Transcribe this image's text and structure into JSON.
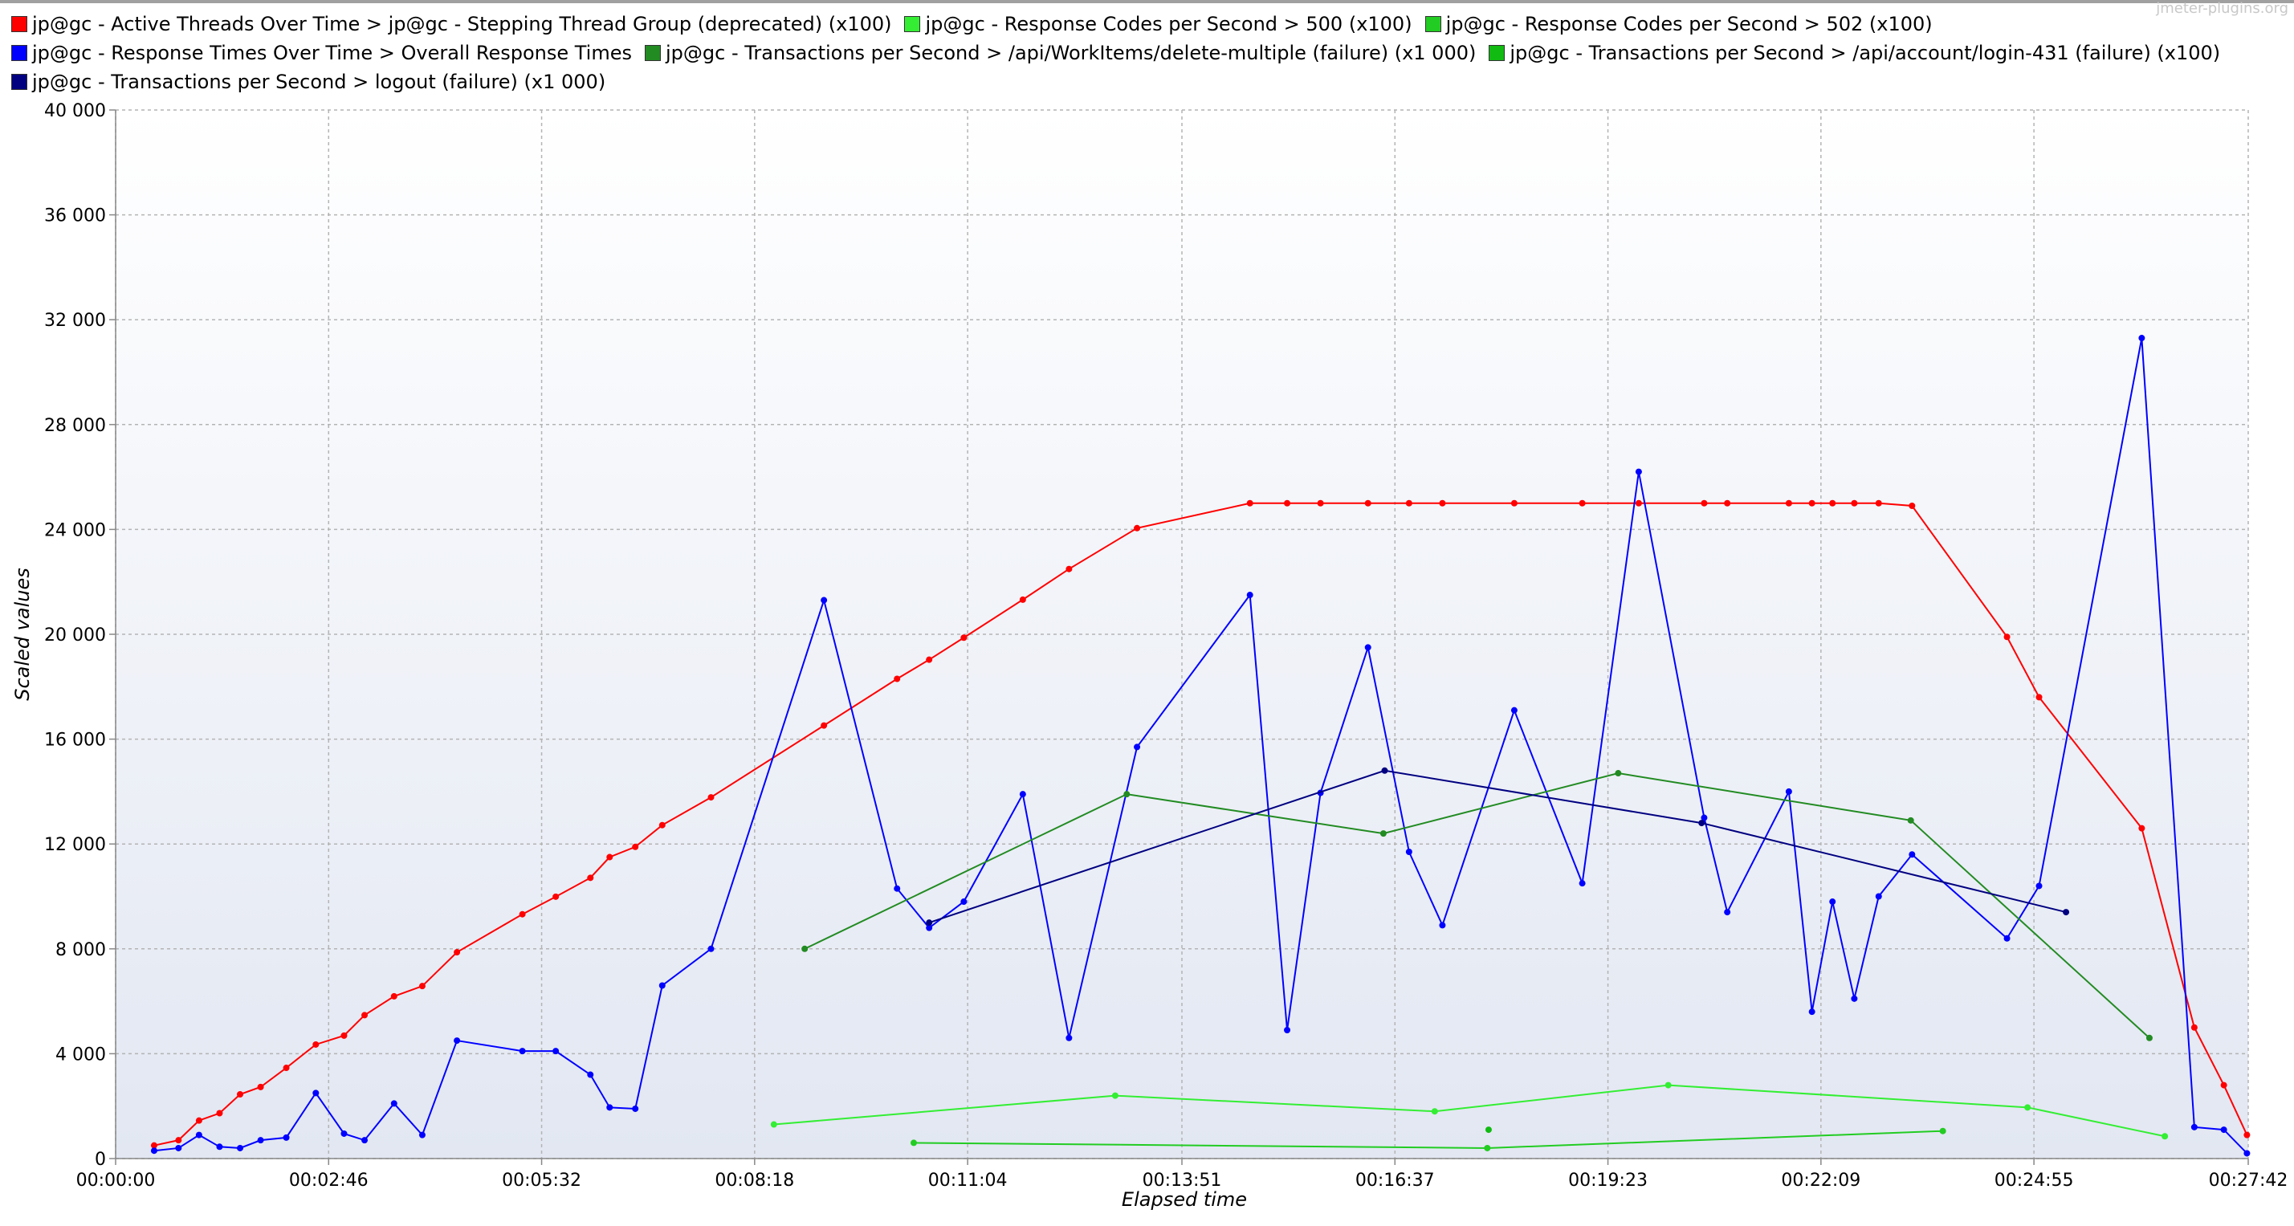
{
  "chart_data": {
    "type": "line",
    "watermark": "jmeter-plugins.org",
    "x_label": "Elapsed time",
    "y_label": "Scaled values",
    "xlim": [
      0,
      1662
    ],
    "xticks": [
      {
        "value": 0,
        "label": "00:00:00"
      },
      {
        "value": 166,
        "label": "00:02:46"
      },
      {
        "value": 332,
        "label": "00:05:32"
      },
      {
        "value": 498,
        "label": "00:08:18"
      },
      {
        "value": 664,
        "label": "00:11:04"
      },
      {
        "value": 831,
        "label": "00:13:51"
      },
      {
        "value": 997,
        "label": "00:16:37"
      },
      {
        "value": 1163,
        "label": "00:19:23"
      },
      {
        "value": 1329,
        "label": "00:22:09"
      },
      {
        "value": 1495,
        "label": "00:24:55"
      },
      {
        "value": 1662,
        "label": "00:27:42"
      }
    ],
    "ylim": [
      0,
      40000
    ],
    "yticks": [
      0,
      {
        "value": 4000,
        "label": "4 000"
      },
      {
        "value": 8000,
        "label": "8 000"
      },
      {
        "value": 12000,
        "label": "12 000"
      },
      {
        "value": 16000,
        "label": "16 000"
      },
      {
        "value": 20000,
        "label": "20 000"
      },
      {
        "value": 24000,
        "label": "24 000"
      },
      {
        "value": 28000,
        "label": "28 000"
      },
      {
        "value": 32000,
        "label": "32 000"
      },
      {
        "value": 36000,
        "label": "36 000"
      },
      {
        "value": 40000,
        "label": "40 000"
      }
    ],
    "grid": true,
    "series": [
      {
        "name": "jp@gc - Active Threads Over Time > jp@gc - Stepping Thread Group (deprecated) (x100)",
        "color": "#ff0000",
        "x": [
          30,
          49,
          65,
          81,
          97,
          113,
          133,
          156,
          178,
          194,
          217,
          239,
          266,
          317,
          343,
          370,
          385,
          405,
          426,
          464,
          552,
          609,
          634,
          661,
          707,
          743,
          796,
          884,
          913,
          939,
          976,
          1008,
          1034,
          1090,
          1143,
          1187,
          1238,
          1256,
          1304,
          1322,
          1338,
          1355,
          1374,
          1400,
          1474,
          1499,
          1579,
          1620,
          1643,
          1661
        ],
        "values": [
          500,
          700,
          1450,
          1730,
          2450,
          2730,
          3460,
          4350,
          4690,
          5470,
          6190,
          6580,
          7870,
          9320,
          9990,
          10710,
          11500,
          11890,
          12720,
          13780,
          16520,
          18300,
          19030,
          19870,
          21320,
          22490,
          24050,
          25000,
          25000,
          25000,
          25000,
          25000,
          25000,
          25000,
          25000,
          25000,
          25000,
          25000,
          25000,
          25000,
          25000,
          25000,
          25000,
          24900,
          19900,
          17600,
          12600,
          5000,
          2800,
          900
        ]
      },
      {
        "name": "jp@gc - Response Codes per Second > 500 (x100)",
        "color": "#33ee33",
        "x": [
          513,
          779,
          1028,
          1210,
          1490,
          1597
        ],
        "values": [
          1300,
          2400,
          1800,
          2800,
          1950,
          850
        ]
      },
      {
        "name": "jp@gc - Response Codes per Second > 502 (x100)",
        "color": "#22cc22",
        "x": [
          622,
          1069,
          1424
        ],
        "values": [
          600,
          400,
          1050
        ]
      },
      {
        "name": "jp@gc - Response Times Over Time > Overall Response Times",
        "color": "#0000ff",
        "x": [
          30,
          49,
          65,
          81,
          97,
          113,
          133,
          156,
          178,
          194,
          217,
          239,
          266,
          317,
          343,
          370,
          385,
          405,
          426,
          464,
          552,
          609,
          634,
          661,
          707,
          743,
          796,
          884,
          913,
          939,
          976,
          1008,
          1034,
          1090,
          1143,
          1187,
          1238,
          1256,
          1304,
          1322,
          1338,
          1355,
          1374,
          1400,
          1474,
          1499,
          1579,
          1620,
          1643,
          1661
        ],
        "values": [
          300,
          400,
          900,
          450,
          400,
          700,
          800,
          2500,
          950,
          700,
          2100,
          900,
          4500,
          4100,
          4100,
          3200,
          1950,
          1900,
          6600,
          8000,
          21300,
          10300,
          8800,
          9800,
          13900,
          4600,
          15700,
          21500,
          4900,
          13950,
          19500,
          11700,
          8900,
          17100,
          10500,
          26200,
          13000,
          9400,
          14000,
          5600,
          9800,
          6100,
          10000,
          11600,
          8400,
          10400,
          31300,
          1200,
          1100,
          200
        ]
      },
      {
        "name": "jp@gc - Transactions per Second > /api/WorkItems/delete-multiple (failure) (x1 000)",
        "color": "#228b22",
        "x": [
          537,
          788,
          988,
          1171,
          1399,
          1585
        ],
        "values": [
          8000,
          13900,
          12400,
          14700,
          12900,
          4600
        ]
      },
      {
        "name": "jp@gc - Transactions per Second > /api/account/login-431 (failure) (x100)",
        "color": "#11bb11",
        "x": [
          1070
        ],
        "values": [
          1100
        ]
      },
      {
        "name": "jp@gc - Transactions per Second > logout (failure) (x1 000)",
        "color": "#000080",
        "x": [
          634,
          989,
          1236,
          1520
        ],
        "values": [
          9000,
          14800,
          12800,
          9400
        ]
      }
    ]
  }
}
